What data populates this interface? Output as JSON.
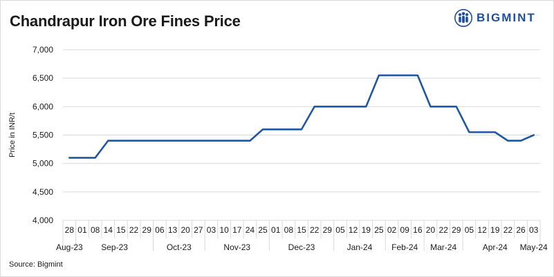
{
  "header": {
    "title": "Chandrapur Iron Ore Fines Price",
    "brand": "BIGMINT"
  },
  "footer": {
    "source": "Source: Bigmint"
  },
  "colors": {
    "line": "#1f57a4",
    "brand": "#1f4fa0",
    "grid": "#d9d9d9",
    "text": "#1a1a1a"
  },
  "icons": {
    "brand_logo": "people-group-icon"
  },
  "chart_data": {
    "type": "line",
    "title": "Chandrapur Iron Ore Fines Price",
    "ylabel": "Price in INR/t",
    "xlabel": "",
    "ylim": [
      4000,
      7000
    ],
    "yticks": [
      4000,
      4500,
      5000,
      5500,
      6000,
      6500,
      7000
    ],
    "ytick_labels": [
      "4,000",
      "4,500",
      "5,000",
      "5,500",
      "6,000",
      "6,500",
      "7,000"
    ],
    "grid": true,
    "x": [
      "28",
      "01",
      "08",
      "14",
      "15",
      "22",
      "29",
      "06",
      "13",
      "20",
      "27",
      "03",
      "10",
      "17",
      "24",
      "25",
      "01",
      "08",
      "15",
      "22",
      "29",
      "05",
      "12",
      "19",
      "25",
      "02",
      "09",
      "16",
      "20",
      "22",
      "29",
      "05",
      "12",
      "19",
      "22",
      "26",
      "03"
    ],
    "month_groups": [
      {
        "label": "Aug-23",
        "count": 1
      },
      {
        "label": "Sep-23",
        "count": 6
      },
      {
        "label": "Oct-23",
        "count": 4
      },
      {
        "label": "Nov-23",
        "count": 5
      },
      {
        "label": "Dec-23",
        "count": 5
      },
      {
        "label": "Jan-24",
        "count": 4
      },
      {
        "label": "Feb-24",
        "count": 3
      },
      {
        "label": "Mar-24",
        "count": 3
      },
      {
        "label": "Apr-24",
        "count": 5
      },
      {
        "label": "May-24",
        "count": 1
      }
    ],
    "series": [
      {
        "values": [
          5100,
          5100,
          5100,
          5400,
          5400,
          5400,
          5400,
          5400,
          5400,
          5400,
          5400,
          5400,
          5400,
          5400,
          5400,
          5600,
          5600,
          5600,
          5600,
          6000,
          6000,
          6000,
          6000,
          6000,
          6550,
          6550,
          6550,
          6550,
          6000,
          6000,
          6000,
          5550,
          5550,
          5550,
          5400,
          5400,
          5500
        ]
      }
    ]
  }
}
